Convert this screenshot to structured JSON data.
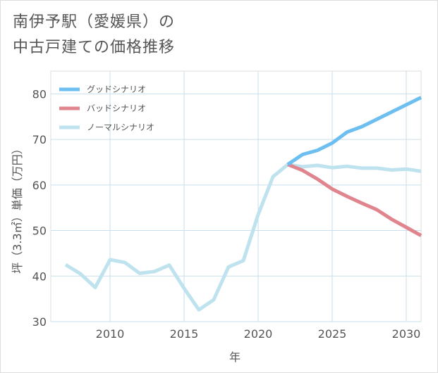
{
  "title": {
    "line1": "南伊予駅（愛媛県）の",
    "line2": "中古戸建ての価格推移"
  },
  "chart_data": {
    "type": "line",
    "xlabel": "年",
    "ylabel": "坪（3.3㎡）単価（万円）",
    "xlim": [
      2006,
      2031
    ],
    "ylim": [
      30,
      85
    ],
    "x_ticks": [
      "2010",
      "2015",
      "2020",
      "2025",
      "2030"
    ],
    "y_ticks": [
      "30",
      "40",
      "50",
      "60",
      "70",
      "80"
    ],
    "grid": true,
    "legend_position": "top-left",
    "series": [
      {
        "name": "グッドシナリオ",
        "color": "#6cbff0",
        "x": [
          2022,
          2023,
          2024,
          2025,
          2026,
          2027,
          2028,
          2029,
          2030,
          2031
        ],
        "y": [
          64.5,
          66.7,
          67.6,
          69.2,
          71.6,
          72.8,
          74.4,
          76.0,
          77.6,
          79.2
        ]
      },
      {
        "name": "バッドシナリオ",
        "color": "#e0848e",
        "x": [
          2022,
          2023,
          2024,
          2025,
          2026,
          2027,
          2028,
          2029,
          2030,
          2031
        ],
        "y": [
          64.5,
          63.2,
          61.3,
          59.1,
          57.5,
          56.0,
          54.6,
          52.5,
          50.7,
          48.9
        ]
      },
      {
        "name": "ノーマルシナリオ",
        "color": "#bfe2ef",
        "x": [
          2007,
          2008,
          2009,
          2010,
          2011,
          2012,
          2013,
          2014,
          2015,
          2016,
          2017,
          2018,
          2019,
          2020,
          2021,
          2022,
          2023,
          2024,
          2025,
          2026,
          2027,
          2028,
          2029,
          2030,
          2031
        ],
        "y": [
          42.5,
          40.5,
          37.5,
          43.6,
          43.0,
          40.6,
          41.0,
          42.4,
          37.3,
          32.6,
          34.8,
          42.0,
          43.4,
          53.5,
          61.8,
          64.5,
          64.0,
          64.3,
          63.8,
          64.1,
          63.7,
          63.7,
          63.3,
          63.5,
          63.0
        ]
      }
    ]
  }
}
